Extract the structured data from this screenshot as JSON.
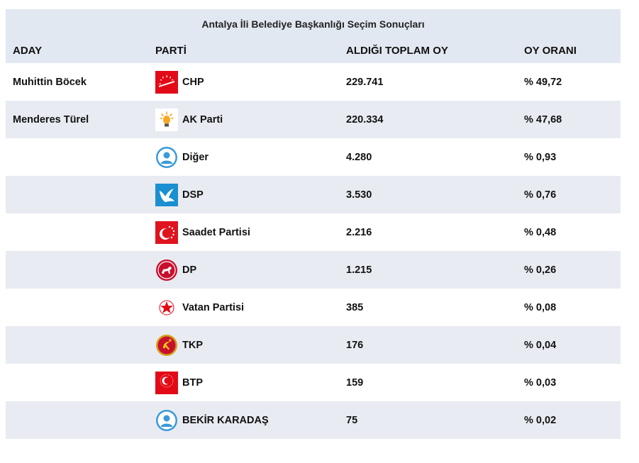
{
  "title": "Antalya İli Belediye Başkanlığı Seçim Sonuçları",
  "columns": {
    "aday": "ADAY",
    "parti": "PARTİ",
    "oy": "ALDIĞI TOPLAM OY",
    "oran": "OY ORANI"
  },
  "rows": [
    {
      "aday": "Muhittin Böcek",
      "parti": "CHP",
      "oy": "229.741",
      "oran": "% 49,72",
      "logo": "chp-logo-icon"
    },
    {
      "aday": "Menderes Türel",
      "parti": "AK Parti",
      "oy": "220.334",
      "oran": "% 47,68",
      "logo": "ak-parti-logo-icon"
    },
    {
      "aday": "",
      "parti": "Diğer",
      "oy": "4.280",
      "oran": "% 0,93",
      "logo": "person-avatar-icon"
    },
    {
      "aday": "",
      "parti": "DSP",
      "oy": "3.530",
      "oran": "% 0,76",
      "logo": "dsp-dove-logo-icon"
    },
    {
      "aday": "",
      "parti": "Saadet Partisi",
      "oy": "2.216",
      "oran": "% 0,48",
      "logo": "saadet-logo-icon"
    },
    {
      "aday": "",
      "parti": "DP",
      "oy": "1.215",
      "oran": "% 0,26",
      "logo": "dp-horse-logo-icon"
    },
    {
      "aday": "",
      "parti": "Vatan Partisi",
      "oy": "385",
      "oran": "% 0,08",
      "logo": "vatan-star-logo-icon"
    },
    {
      "aday": "",
      "parti": "TKP",
      "oy": "176",
      "oran": "% 0,04",
      "logo": "tkp-logo-icon"
    },
    {
      "aday": "",
      "parti": "BTP",
      "oy": "159",
      "oran": "% 0,03",
      "logo": "btp-logo-icon"
    },
    {
      "aday": "",
      "parti": "BEKİR KARADAŞ",
      "oy": "75",
      "oran": "% 0,02",
      "logo": "person-avatar-icon"
    }
  ],
  "colors": {
    "header_bg": "#e2e8f1",
    "row_alt_bg": "#e8ebf1",
    "chp_red": "#e30a17",
    "akp_yellow": "#f7a823",
    "dsp_blue": "#1a8fd1",
    "avatar_blue": "#3a9ad9"
  }
}
